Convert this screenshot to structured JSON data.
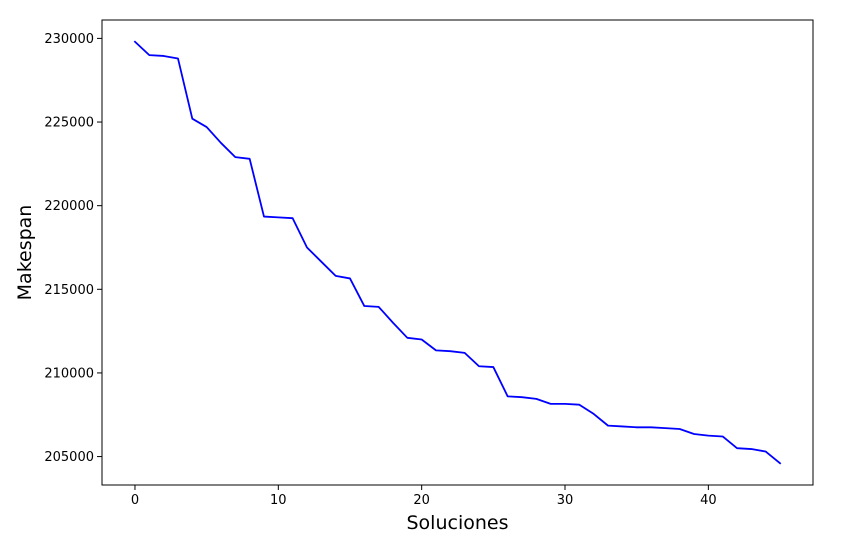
{
  "chart_data": {
    "type": "line",
    "title": "",
    "xlabel": "Soluciones",
    "ylabel": "Makespan",
    "xlim": [
      -2.3,
      47.3
    ],
    "ylim": [
      203300,
      231100
    ],
    "xticks": [
      0,
      10,
      20,
      30,
      40
    ],
    "xtick_labels": [
      "0",
      "10",
      "20",
      "30",
      "40"
    ],
    "yticks": [
      205000,
      210000,
      215000,
      220000,
      225000,
      230000
    ],
    "ytick_labels": [
      "205000",
      "210000",
      "215000",
      "220000",
      "225000",
      "230000"
    ],
    "grid": false,
    "legend": false,
    "series": [
      {
        "color": "#0000ff",
        "x": [
          0,
          1,
          2,
          3,
          4,
          5,
          6,
          7,
          8,
          9,
          10,
          11,
          12,
          13,
          14,
          15,
          16,
          17,
          18,
          19,
          20,
          21,
          22,
          23,
          24,
          25,
          26,
          27,
          28,
          29,
          30,
          31,
          32,
          33,
          34,
          35,
          36,
          37,
          38,
          39,
          40,
          41,
          42,
          43,
          44,
          45
        ],
        "values": [
          229800,
          229000,
          228950,
          228800,
          225200,
          224700,
          223750,
          222900,
          222800,
          219350,
          219300,
          219250,
          217500,
          216650,
          215800,
          215650,
          214000,
          213950,
          213000,
          212100,
          212000,
          211350,
          211300,
          211200,
          210400,
          210350,
          208600,
          208550,
          208450,
          208150,
          208150,
          208100,
          207550,
          206850,
          206800,
          206750,
          206750,
          206700,
          206650,
          206350,
          206250,
          206200,
          205500,
          205450,
          205300,
          204600
        ]
      }
    ]
  }
}
